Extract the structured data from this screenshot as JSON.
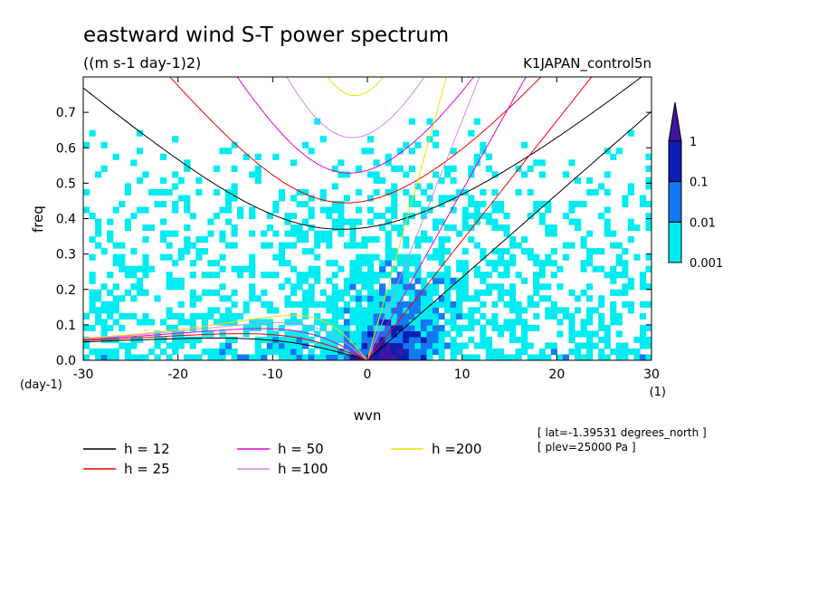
{
  "chart_data": {
    "type": "heatmap",
    "title": "eastward wind S-T power spectrum",
    "subtitle": "((m s-1 day-1)2)",
    "run_label": "K1JAPAN_control5n",
    "xlabel": "wvn",
    "x_unit": "(1)",
    "ylabel": "freq",
    "y_unit": "(day-1)",
    "xlim": [
      -30,
      30
    ],
    "ylim": [
      0,
      0.8
    ],
    "x_ticks": [
      -30,
      -20,
      -10,
      0,
      10,
      20,
      30
    ],
    "y_ticks": [
      0.0,
      0.1,
      0.2,
      0.3,
      0.4,
      0.5,
      0.6,
      0.7
    ],
    "x_tick_labels": [
      "-30",
      "-20",
      "-10",
      "0",
      "10",
      "20",
      "30"
    ],
    "y_tick_labels": [
      "0.0",
      "0.1",
      "0.2",
      "0.3",
      "0.4",
      "0.5",
      "0.6",
      "0.7"
    ],
    "colorbar": {
      "levels": [
        0.001,
        0.01,
        0.1,
        1
      ],
      "labels": [
        "0.001",
        "0.01",
        "0.1",
        "1"
      ],
      "colors": [
        "#ffffff",
        "#00ecf0",
        "#1478f0",
        "#0a1eb4",
        "#4014a0"
      ]
    },
    "dispersion_curves": [
      {
        "label": "h = 12",
        "h": 12,
        "color": "#000000"
      },
      {
        "label": "h = 25",
        "h": 25,
        "color": "#f00000"
      },
      {
        "label": "h = 50",
        "h": 50,
        "color": "#e600c8"
      },
      {
        "label": "h =100",
        "h": 100,
        "color": "#d28cdc"
      },
      {
        "label": "h =200",
        "h": 200,
        "color": "#f0dc00"
      }
    ],
    "annotations": [
      "[ lat=-1.39531 degrees_north ]",
      "[ plev=25000 Pa ]"
    ]
  }
}
